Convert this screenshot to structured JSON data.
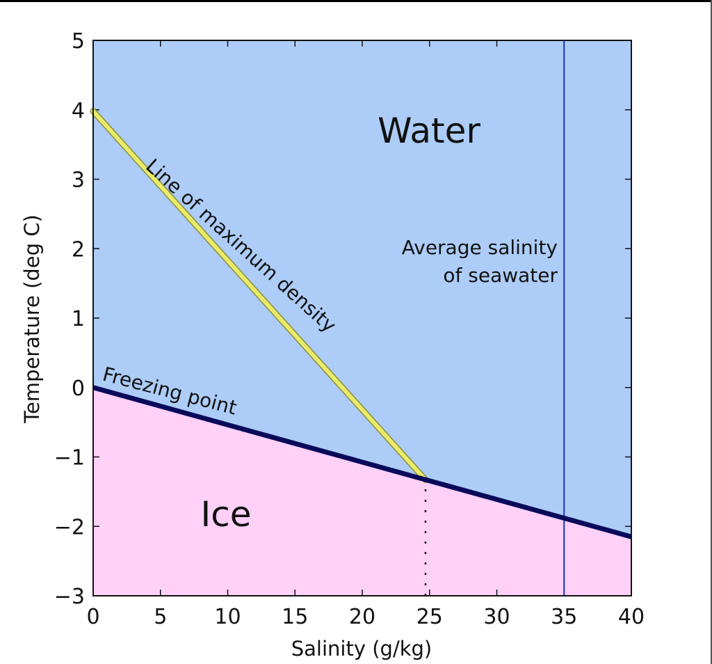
{
  "chart_data": {
    "type": "line",
    "title": "",
    "xlabel": "Salinity (g/kg)",
    "ylabel": "Temperature (deg C)",
    "xlim": [
      0,
      40
    ],
    "ylim": [
      -3,
      5
    ],
    "xticks": [
      "0",
      "5",
      "10",
      "15",
      "20",
      "25",
      "30",
      "35",
      "40"
    ],
    "yticks": [
      "−3",
      "−2",
      "−1",
      "0",
      "1",
      "2",
      "3",
      "4",
      "5"
    ],
    "regions": {
      "above": {
        "label": "Water",
        "color": "#adcdf8"
      },
      "below": {
        "label": "Ice",
        "color": "#ffd0f8"
      }
    },
    "series": [
      {
        "name": "Freezing point",
        "color": "#0a0a5a",
        "x": [
          0,
          40
        ],
        "y": [
          0,
          -2.15
        ]
      },
      {
        "name": "Line of maximum density",
        "color": "#e8ec6a",
        "x": [
          0,
          24.7
        ],
        "y": [
          3.98,
          -1.33
        ]
      },
      {
        "name": "Average salinity of seawater",
        "color": "#1f2fb8",
        "x": [
          35,
          35
        ],
        "y": [
          -3,
          5
        ]
      }
    ],
    "annotations": {
      "water": "Water",
      "ice": "Ice",
      "freezing": "Freezing point",
      "max_density": "Line of maximum density",
      "avg_line1": "Average salinity",
      "avg_line2": "of seawater"
    },
    "dotted_marker": {
      "x": 24.7,
      "y_from": -3,
      "y_to": -1.33
    }
  }
}
